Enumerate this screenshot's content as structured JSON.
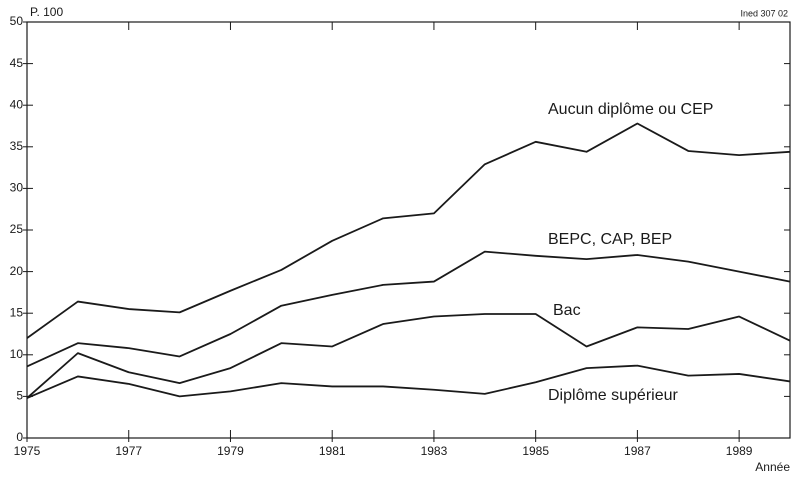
{
  "chart_data": {
    "type": "line",
    "y_label": "P. 100",
    "x_label": "Année",
    "source": "Ined 307 02",
    "x": [
      1975,
      1976,
      1977,
      1978,
      1979,
      1980,
      1981,
      1982,
      1983,
      1984,
      1985,
      1986,
      1987,
      1988,
      1989,
      1990
    ],
    "series": [
      {
        "name": "Aucun diplôme ou CEP",
        "color": "#1a1a1a",
        "values": [
          12.0,
          16.4,
          15.5,
          15.1,
          17.7,
          20.2,
          23.7,
          26.4,
          27.0,
          32.9,
          35.6,
          34.4,
          37.8,
          34.5,
          34.0,
          34.4
        ]
      },
      {
        "name": "BEPC, CAP, BEP",
        "color": "#1a1a1a",
        "values": [
          8.6,
          11.4,
          10.8,
          9.8,
          12.5,
          15.9,
          17.2,
          18.4,
          18.8,
          22.4,
          21.9,
          21.5,
          22.0,
          21.2,
          20.0,
          18.8
        ]
      },
      {
        "name": "Bac",
        "color": "#1a1a1a",
        "values": [
          4.8,
          10.2,
          7.9,
          6.6,
          8.4,
          11.4,
          11.0,
          13.7,
          14.6,
          14.9,
          14.9,
          11.0,
          13.3,
          13.1,
          14.6,
          11.7
        ]
      },
      {
        "name": "Diplôme supérieur",
        "color": "#1a1a1a",
        "values": [
          4.8,
          7.4,
          6.5,
          5.0,
          5.6,
          6.6,
          6.2,
          6.2,
          5.8,
          5.3,
          6.7,
          8.4,
          8.7,
          7.5,
          7.7,
          6.8
        ]
      }
    ],
    "xlim": [
      1975,
      1990
    ],
    "xticks": [
      1975,
      1977,
      1979,
      1981,
      1983,
      1985,
      1987,
      1989
    ],
    "ylim": [
      0,
      50
    ],
    "yticks": [
      0,
      5,
      10,
      15,
      20,
      25,
      30,
      35,
      40,
      45,
      50
    ]
  }
}
